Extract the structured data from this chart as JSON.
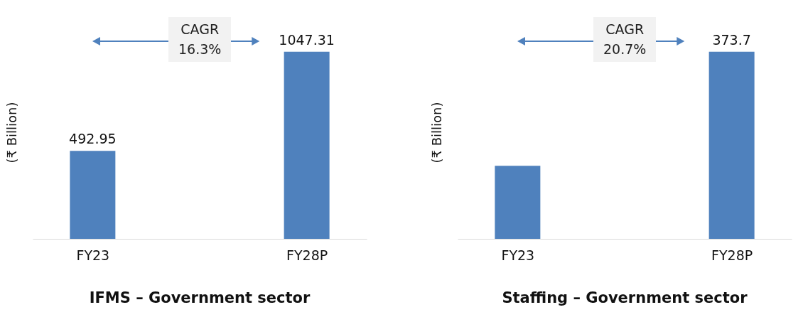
{
  "chart_data": [
    {
      "type": "bar",
      "title": "IFMS – Government sector",
      "ylabel": "(₹ Billion)",
      "categories": [
        "FY23",
        "FY28P"
      ],
      "values": [
        492.95,
        1047.31
      ],
      "color": "#4f81bd",
      "data_labels": true,
      "annotations": [
        "CAGR\n16.3%"
      ]
    },
    {
      "type": "bar",
      "title": "Staffing  – Government sector",
      "ylabel": "(₹ Billion)",
      "categories": [
        "FY23",
        "FY28P"
      ],
      "values": [
        146,
        373.7
      ],
      "value_labels": [
        null,
        "373.7"
      ],
      "color": "#4f81bd",
      "annotations": [
        "CAGR\n20.7%"
      ]
    }
  ]
}
